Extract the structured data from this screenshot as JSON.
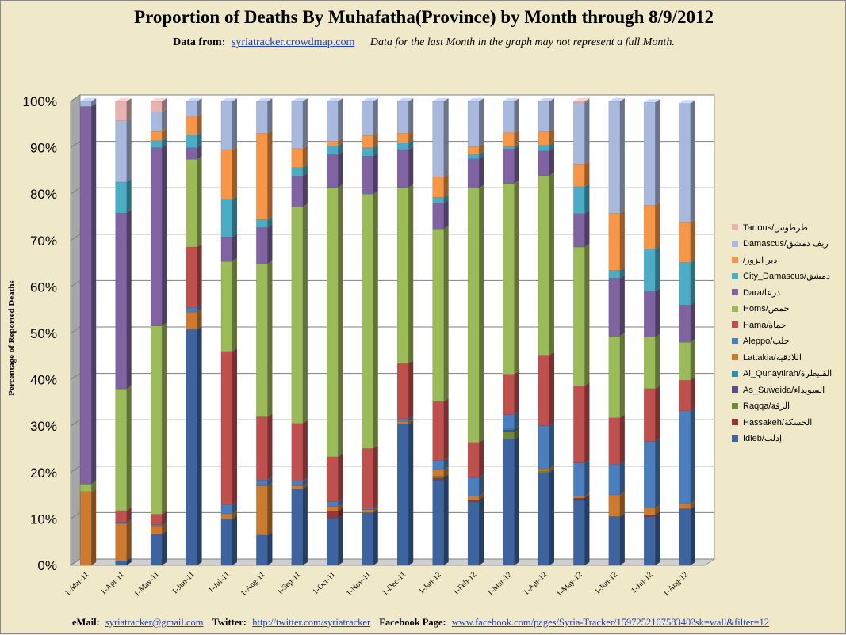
{
  "header": {
    "title": "Proportion of Deaths By Muhafatha(Province) by Month through 8/9/2012",
    "data_from_label": "Data from:",
    "data_link": "syriatracker.crowdmap.com",
    "note": "Data for the last Month in the graph may not represent a full Month."
  },
  "footer": {
    "email_label": "eMail:",
    "email": "syriatracker@gmail.com",
    "twitter_label": "Twitter:",
    "twitter": "http://twitter.com/syriatracker",
    "facebook_label": "Facebook  Page:",
    "facebook": "www.facebook.com/pages/Syria-Tracker/159725210758340?sk=wall&filter=12"
  },
  "colors": {
    "background": "#efe9c9",
    "plot_background": "#ffffff",
    "link": "#1f3fbf"
  },
  "chart_data": {
    "type": "bar",
    "stacked": true,
    "normalized": true,
    "three_d": true,
    "title": "Proportion of Deaths By Muhafatha(Province) by Month through 8/9/2012",
    "ylabel": "Percentage of Reported Deaths",
    "xlabel": "",
    "ylim": [
      0,
      100
    ],
    "yticks": [
      "0%",
      "10%",
      "20%",
      "30%",
      "40%",
      "50%",
      "60%",
      "70%",
      "80%",
      "90%",
      "100%"
    ],
    "grid": true,
    "legend_position": "right",
    "categories": [
      "1-Mar-11",
      "1-Apr-11",
      "1-May-11",
      "1-Jun-11",
      "1-Jul-11",
      "1-Aug-11",
      "1-Sep-11",
      "1-Oct-11",
      "1-Nov-11",
      "1-Dec-11",
      "1-Jan-12",
      "1-Feb-12",
      "1-Mar-12",
      "1-Apr-12",
      "1-May-12",
      "1-Jun-12",
      "1-Jul-12",
      "1-Aug-12"
    ],
    "series": [
      {
        "name": "Idleb/إدلب",
        "color": "#3e64a0",
        "values": [
          0,
          1,
          6.7,
          50.8,
          10,
          6.5,
          16.5,
          10.2,
          11.4,
          30.4,
          18.4,
          13.7,
          27.2,
          20,
          14,
          10.5,
          10.5,
          12.2
        ]
      },
      {
        "name": "Hassakeh/الحسكة",
        "color": "#953735",
        "values": [
          0,
          0,
          0,
          0,
          0,
          0,
          0,
          1.5,
          0,
          0,
          0.4,
          0.4,
          0,
          0,
          0.3,
          0,
          0.4,
          0
        ]
      },
      {
        "name": "Raqqa/الرقة",
        "color": "#6f8b3a",
        "values": [
          0,
          0,
          0,
          0,
          0,
          0,
          0,
          0,
          0,
          0,
          0.4,
          0,
          1.6,
          0.3,
          0,
          0,
          0,
          0
        ]
      },
      {
        "name": "As_Suweida/السويداء",
        "color": "#5b4a8a",
        "values": [
          0,
          0,
          0,
          0,
          0,
          0,
          0,
          0,
          0,
          0,
          0,
          0,
          0.4,
          0,
          0.2,
          0,
          0,
          0
        ]
      },
      {
        "name": "Al_Qunaytirah/القنيطرة",
        "color": "#2f8fb0",
        "values": [
          0,
          0,
          0,
          0,
          0,
          0,
          0,
          0,
          0,
          0,
          0,
          0,
          0.3,
          0,
          0,
          0,
          0,
          0
        ]
      },
      {
        "name": "Lattakia/اللاذقية",
        "color": "#cc7a2e",
        "values": [
          15.9,
          8,
          1.8,
          3.8,
          1.1,
          10.6,
          0.6,
          1,
          0.6,
          0.6,
          1.3,
          0.8,
          0,
          0.5,
          0.4,
          4.7,
          1.5,
          1.1
        ]
      },
      {
        "name": "Aleppo/حلب",
        "color": "#4a7ebf",
        "values": [
          0,
          0.3,
          0.3,
          1,
          2,
          1.3,
          1.1,
          1,
          0.4,
          0.6,
          2.1,
          4,
          3,
          9.3,
          7.2,
          6.6,
          14.3,
          20
        ]
      },
      {
        "name": "Hama/حماة",
        "color": "#c0504d",
        "values": [
          0,
          2.5,
          2.2,
          13,
          33,
          13.6,
          12.4,
          9.7,
          12.8,
          11.9,
          12.7,
          7.6,
          8.7,
          15.2,
          16.6,
          10,
          11.4,
          6.6
        ]
      },
      {
        "name": "Homs/حمص",
        "color": "#9bbb59",
        "values": [
          1.6,
          26.2,
          40.6,
          18.9,
          19.4,
          33,
          46.6,
          58,
          54.8,
          37.9,
          37.2,
          54.8,
          41.1,
          38.7,
          29.9,
          17.6,
          11.1,
          8.2
        ]
      },
      {
        "name": "Dara/درعا",
        "color": "#8064a2",
        "values": [
          81.4,
          37.9,
          38.4,
          2.5,
          5.3,
          7.8,
          6.7,
          7.1,
          8.2,
          8.2,
          5.6,
          6.3,
          7.4,
          5.3,
          7.2,
          12.5,
          9.8,
          8
        ]
      },
      {
        "name": "City_Damascus/دمشق",
        "color": "#4bacc6",
        "values": [
          0,
          6.7,
          1.5,
          2.8,
          8.1,
          1.7,
          1.8,
          1.9,
          1.8,
          1.5,
          1.2,
          1,
          0.5,
          1.2,
          5.8,
          1.7,
          9.2,
          9.2
        ]
      },
      {
        "name": "/دير الزور",
        "color": "#f79646",
        "values": [
          0,
          0,
          2,
          4,
          10.7,
          18.6,
          4.1,
          1,
          2.6,
          2,
          4.4,
          1.6,
          3,
          3,
          4.9,
          12.3,
          9.4,
          8.6
        ]
      },
      {
        "name": "Damascus/ريف دمشق",
        "color": "#a9b9dd",
        "values": [
          1.1,
          13.2,
          4.2,
          3.2,
          10.4,
          6.9,
          10.2,
          8.6,
          7.4,
          6.9,
          16.3,
          9.8,
          6.8,
          6.5,
          13.2,
          24.1,
          22.2,
          25.7
        ]
      },
      {
        "name": "Tartous/طرطوس",
        "color": "#e6b3b2",
        "values": [
          0,
          4.2,
          2.3,
          0,
          0,
          0,
          0,
          0,
          0,
          0,
          0,
          0,
          0,
          0,
          0.3,
          0,
          0,
          0
        ]
      }
    ]
  }
}
